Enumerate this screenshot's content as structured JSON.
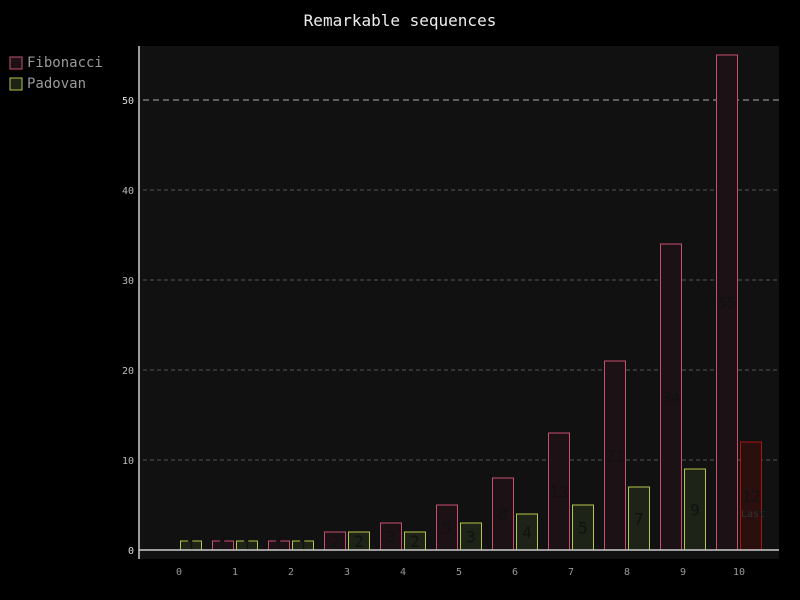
{
  "chart_data": {
    "type": "bar",
    "title": "Remarkable sequences",
    "xlabel": "",
    "ylabel": "",
    "categories": [
      "0",
      "1",
      "2",
      "3",
      "4",
      "5",
      "6",
      "7",
      "8",
      "9",
      "10"
    ],
    "series": [
      {
        "name": "Fibonacci",
        "color": "#c8506e",
        "fill": "#1c1216",
        "values": [
          0,
          1,
          1,
          2,
          3,
          5,
          8,
          13,
          21,
          34,
          55
        ]
      },
      {
        "name": "Padovan",
        "color": "#b6c24a",
        "fill": "#1d2317",
        "values": [
          1,
          1,
          1,
          2,
          2,
          3,
          4,
          5,
          7,
          9,
          12
        ]
      }
    ],
    "highlight": {
      "category": "10",
      "series": "Padovan",
      "color": "#aa1111",
      "fill": "#2a0f0f",
      "label": "Last"
    },
    "ylim": [
      0,
      55
    ],
    "yticks": [
      0,
      10,
      20,
      30,
      40,
      50
    ],
    "major_yticks": [
      0,
      50
    ],
    "grid": true,
    "legend_position": "top-left"
  }
}
